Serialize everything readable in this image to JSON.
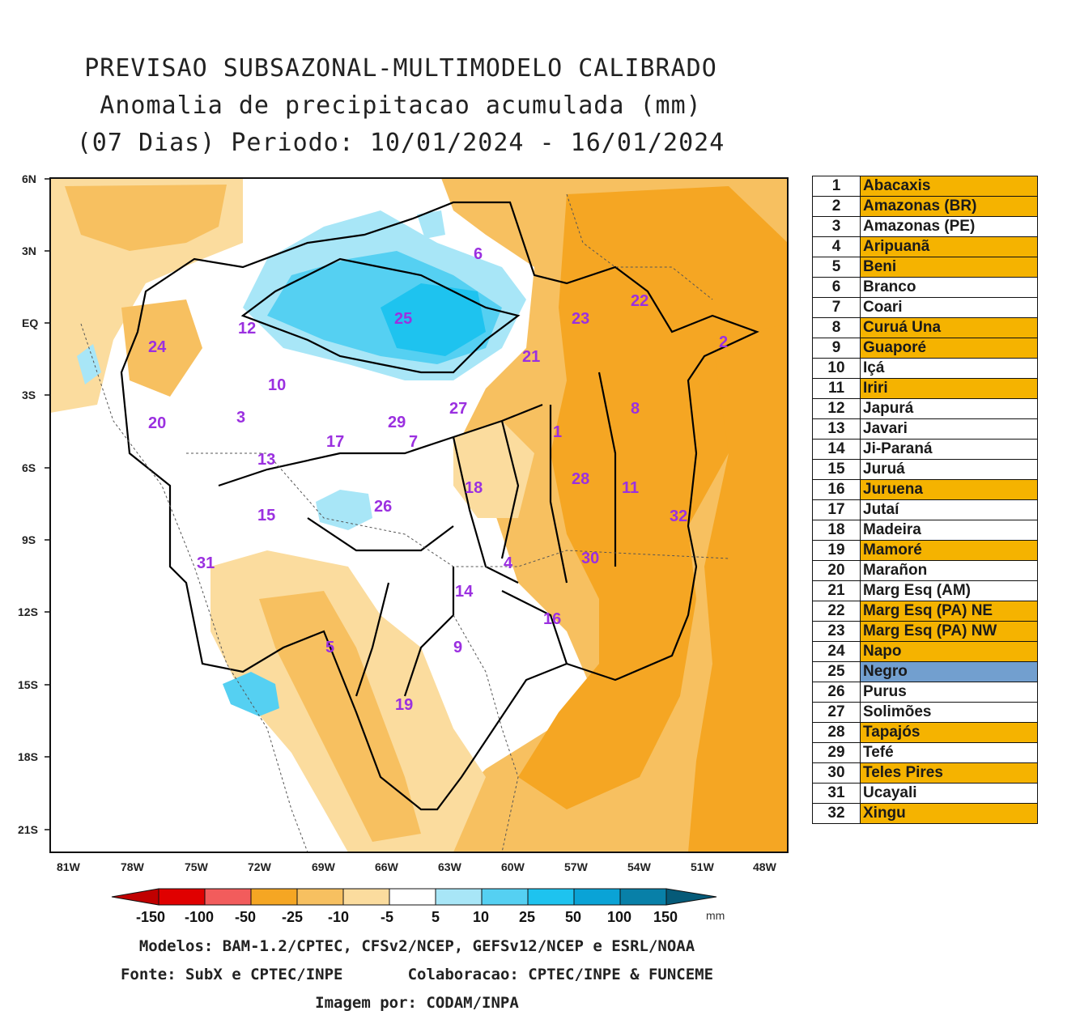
{
  "title": {
    "line1": "PREVISAO SUBSAZONAL-MULTIMODELO CALIBRADO",
    "line2": "Anomalia de precipitacao acumulada (mm)",
    "line3": "(07 Dias) Periodo: 10/01/2024 - 16/01/2024"
  },
  "axes": {
    "lat_labels": [
      "6N",
      "3N",
      "EQ",
      "3S",
      "6S",
      "9S",
      "12S",
      "15S",
      "18S",
      "21S"
    ],
    "lon_labels": [
      "81W",
      "78W",
      "75W",
      "72W",
      "69W",
      "66W",
      "63W",
      "60W",
      "57W",
      "54W",
      "51W",
      "48W"
    ]
  },
  "basin_numbers": [
    "1",
    "2",
    "3",
    "4",
    "5",
    "6",
    "7",
    "8",
    "9",
    "10",
    "11",
    "12",
    "13",
    "14",
    "15",
    "16",
    "17",
    "18",
    "19",
    "20",
    "21",
    "22",
    "23",
    "24",
    "25",
    "26",
    "27",
    "28",
    "29",
    "30",
    "31",
    "32"
  ],
  "colors": {
    "neg150": "#c00000",
    "neg100": "#e83030",
    "neg50": "#f25c5c",
    "neg25": "#f5a623",
    "neg10": "#f7c060",
    "neg5": "#fbdc9e",
    "neutral": "#ffffff",
    "pos5": "#a8e6f7",
    "pos10": "#55d0f2",
    "pos25": "#1ec3ef",
    "pos50": "#0aa3d6",
    "pos100": "#0880a8",
    "pos150": "#055a78",
    "table_orange": "#f5b300",
    "table_blue": "#729fcf",
    "basin_label": "#9b30e0"
  },
  "colorbar": {
    "labels": [
      "-150",
      "-100",
      "-50",
      "-25",
      "-10",
      "-5",
      "5",
      "10",
      "25",
      "50",
      "100",
      "150"
    ],
    "unit": "mm"
  },
  "legend": [
    {
      "num": "1",
      "name": "Abacaxis",
      "hl": "orange"
    },
    {
      "num": "2",
      "name": "Amazonas (BR)",
      "hl": "orange"
    },
    {
      "num": "3",
      "name": "Amazonas (PE)",
      "hl": "none"
    },
    {
      "num": "4",
      "name": "Aripuanã",
      "hl": "orange"
    },
    {
      "num": "5",
      "name": "Beni",
      "hl": "orange"
    },
    {
      "num": "6",
      "name": "Branco",
      "hl": "none"
    },
    {
      "num": "7",
      "name": "Coari",
      "hl": "none"
    },
    {
      "num": "8",
      "name": "Curuá Una",
      "hl": "orange"
    },
    {
      "num": "9",
      "name": "Guaporé",
      "hl": "orange"
    },
    {
      "num": "10",
      "name": "Içá",
      "hl": "none"
    },
    {
      "num": "11",
      "name": "Iriri",
      "hl": "orange"
    },
    {
      "num": "12",
      "name": "Japurá",
      "hl": "none"
    },
    {
      "num": "13",
      "name": "Javari",
      "hl": "none"
    },
    {
      "num": "14",
      "name": "Ji-Paraná",
      "hl": "none"
    },
    {
      "num": "15",
      "name": "Juruá",
      "hl": "none"
    },
    {
      "num": "16",
      "name": "Juruena",
      "hl": "orange"
    },
    {
      "num": "17",
      "name": "Jutaí",
      "hl": "none"
    },
    {
      "num": "18",
      "name": "Madeira",
      "hl": "none"
    },
    {
      "num": "19",
      "name": "Mamoré",
      "hl": "orange"
    },
    {
      "num": "20",
      "name": "Marañon",
      "hl": "none"
    },
    {
      "num": "21",
      "name": "Marg Esq (AM)",
      "hl": "none"
    },
    {
      "num": "22",
      "name": "Marg Esq (PA) NE",
      "hl": "orange"
    },
    {
      "num": "23",
      "name": "Marg Esq (PA) NW",
      "hl": "orange"
    },
    {
      "num": "24",
      "name": "Napo",
      "hl": "orange"
    },
    {
      "num": "25",
      "name": "Negro",
      "hl": "blue"
    },
    {
      "num": "26",
      "name": "Purus",
      "hl": "none"
    },
    {
      "num": "27",
      "name": "Solimões",
      "hl": "none"
    },
    {
      "num": "28",
      "name": "Tapajós",
      "hl": "orange"
    },
    {
      "num": "29",
      "name": "Tefé",
      "hl": "none"
    },
    {
      "num": "30",
      "name": "Teles Pires",
      "hl": "orange"
    },
    {
      "num": "31",
      "name": "Ucayali",
      "hl": "none"
    },
    {
      "num": "32",
      "name": "Xingu",
      "hl": "orange"
    }
  ],
  "footer": {
    "models": "Modelos: BAM-1.2/CPTEC, CFSv2/NCEP, GEFSv12/NCEP e ESRL/NOAA",
    "source": "Fonte: SubX e CPTEC/INPE",
    "collab": "Colaboracao: CPTEC/INPE & FUNCEME",
    "image": "Imagem por: CODAM/INPA"
  }
}
